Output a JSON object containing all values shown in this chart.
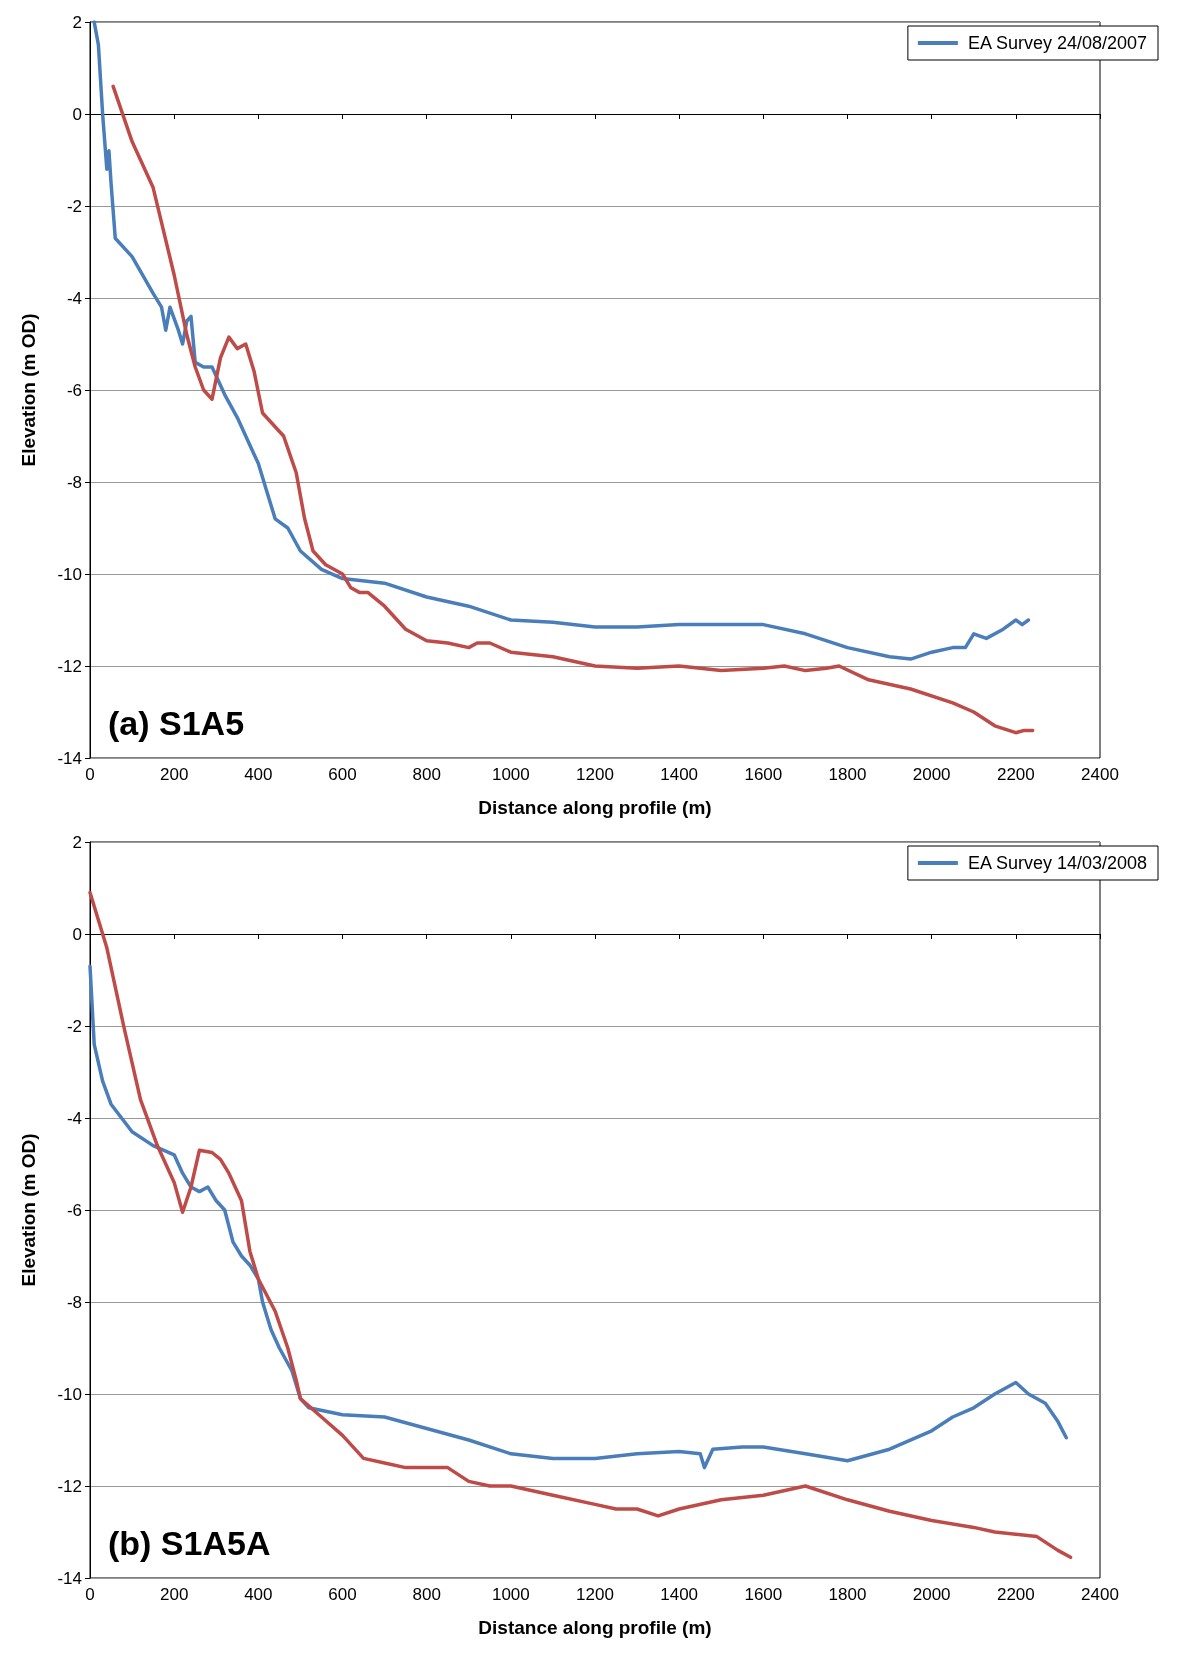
{
  "chart_data": [
    {
      "type": "line",
      "xlabel": "Distance along profile (m)",
      "ylabel": "Elevation (m OD)",
      "annotations": [
        "(a) S1A5"
      ],
      "xlim": [
        0,
        2400
      ],
      "xticks": [
        0,
        200,
        400,
        600,
        800,
        1000,
        1200,
        1400,
        1600,
        1800,
        2000,
        2200,
        2400
      ],
      "ylim": [
        -14,
        2
      ],
      "yticks": [
        -14,
        -12,
        -10,
        -8,
        -6,
        -4,
        -2,
        0,
        2
      ],
      "grid": "y",
      "legend": "top right",
      "marker": "none",
      "line_style": "solid",
      "series": [
        {
          "name": "EA Survey 24/08/2007",
          "color": "#4a7ebb",
          "x": [
            10,
            20,
            30,
            40,
            45,
            50,
            60,
            100,
            150,
            170,
            180,
            190,
            210,
            220,
            230,
            240,
            250,
            270,
            290,
            320,
            350,
            380,
            400,
            420,
            440,
            470,
            500,
            550,
            600,
            700,
            800,
            900,
            1000,
            1100,
            1200,
            1300,
            1400,
            1500,
            1600,
            1700,
            1800,
            1900,
            1950,
            2000,
            2050,
            2080,
            2100,
            2130,
            2170,
            2200,
            2215,
            2230
          ],
          "values": [
            2,
            1.5,
            0,
            -1.2,
            -0.8,
            -1.5,
            -2.7,
            -3.1,
            -3.9,
            -4.2,
            -4.7,
            -4.2,
            -4.7,
            -5.0,
            -4.5,
            -4.4,
            -5.4,
            -5.5,
            -5.5,
            -6.1,
            -6.6,
            -7.2,
            -7.6,
            -8.2,
            -8.8,
            -9.0,
            -9.5,
            -9.9,
            -10.1,
            -10.2,
            -10.5,
            -10.7,
            -11.0,
            -11.05,
            -11.15,
            -11.15,
            -11.1,
            -11.1,
            -11.1,
            -11.3,
            -11.6,
            -11.8,
            -11.85,
            -11.7,
            -11.6,
            -11.6,
            -11.3,
            -11.4,
            -11.2,
            -11.0,
            -11.1,
            -11.0
          ]
        },
        {
          "color": "#be4b48",
          "x": [
            55,
            100,
            150,
            200,
            230,
            250,
            270,
            290,
            310,
            330,
            350,
            370,
            390,
            410,
            430,
            460,
            490,
            510,
            530,
            560,
            600,
            620,
            640,
            660,
            700,
            750,
            800,
            850,
            900,
            920,
            950,
            1000,
            1100,
            1200,
            1300,
            1400,
            1500,
            1600,
            1650,
            1700,
            1750,
            1780,
            1850,
            1950,
            2050,
            2100,
            2150,
            2200,
            2220,
            2240
          ],
          "values": [
            0.6,
            -0.6,
            -1.6,
            -3.5,
            -4.8,
            -5.5,
            -6.0,
            -6.2,
            -5.3,
            -4.85,
            -5.1,
            -5.0,
            -5.6,
            -6.5,
            -6.7,
            -7.0,
            -7.8,
            -8.8,
            -9.5,
            -9.8,
            -10.0,
            -10.3,
            -10.4,
            -10.4,
            -10.7,
            -11.2,
            -11.45,
            -11.5,
            -11.6,
            -11.5,
            -11.5,
            -11.7,
            -11.8,
            -12.0,
            -12.05,
            -12.0,
            -12.1,
            -12.05,
            -12.0,
            -12.1,
            -12.05,
            -12.0,
            -12.3,
            -12.5,
            -12.8,
            -13.0,
            -13.3,
            -13.45,
            -13.4,
            -13.4
          ]
        }
      ]
    },
    {
      "type": "line",
      "xlabel": "Distance along profile (m)",
      "ylabel": "Elevation (m OD)",
      "annotations": [
        "(b) S1A5A"
      ],
      "xlim": [
        0,
        2400
      ],
      "xticks": [
        0,
        200,
        400,
        600,
        800,
        1000,
        1200,
        1400,
        1600,
        1800,
        2000,
        2200,
        2400
      ],
      "ylim": [
        -14,
        2
      ],
      "yticks": [
        -14,
        -12,
        -10,
        -8,
        -6,
        -4,
        -2,
        0,
        2
      ],
      "grid": "y",
      "legend": "top right",
      "marker": "none",
      "line_style": "solid",
      "series": [
        {
          "name": "EA Survey 14/03/2008",
          "color": "#4a7ebb",
          "x": [
            0,
            10,
            30,
            50,
            100,
            150,
            200,
            220,
            240,
            260,
            280,
            300,
            320,
            340,
            360,
            380,
            400,
            410,
            430,
            450,
            480,
            500,
            520,
            600,
            700,
            800,
            900,
            1000,
            1100,
            1200,
            1300,
            1400,
            1450,
            1460,
            1480,
            1550,
            1600,
            1700,
            1800,
            1900,
            2000,
            2050,
            2100,
            2150,
            2200,
            2230,
            2270,
            2300,
            2320
          ],
          "values": [
            -0.7,
            -2.4,
            -3.2,
            -3.7,
            -4.3,
            -4.6,
            -4.8,
            -5.2,
            -5.5,
            -5.6,
            -5.5,
            -5.8,
            -6.0,
            -6.7,
            -7.0,
            -7.2,
            -7.5,
            -8.0,
            -8.6,
            -9.0,
            -9.5,
            -10.1,
            -10.3,
            -10.45,
            -10.5,
            -10.75,
            -11.0,
            -11.3,
            -11.4,
            -11.4,
            -11.3,
            -11.25,
            -11.3,
            -11.6,
            -11.2,
            -11.15,
            -11.15,
            -11.3,
            -11.45,
            -11.2,
            -10.8,
            -10.5,
            -10.3,
            -10.0,
            -9.75,
            -10.0,
            -10.2,
            -10.6,
            -10.95
          ]
        },
        {
          "color": "#be4b48",
          "x": [
            0,
            40,
            80,
            120,
            160,
            200,
            220,
            240,
            260,
            290,
            310,
            330,
            360,
            380,
            400,
            440,
            470,
            490,
            500,
            550,
            600,
            650,
            700,
            750,
            800,
            850,
            900,
            950,
            1000,
            1100,
            1200,
            1250,
            1300,
            1350,
            1400,
            1500,
            1600,
            1700,
            1800,
            1900,
            2000,
            2100,
            2150,
            2250,
            2300,
            2330
          ],
          "values": [
            0.9,
            -0.3,
            -2.0,
            -3.6,
            -4.6,
            -5.4,
            -6.05,
            -5.5,
            -4.7,
            -4.75,
            -4.9,
            -5.2,
            -5.8,
            -6.9,
            -7.5,
            -8.2,
            -9.0,
            -9.7,
            -10.1,
            -10.5,
            -10.9,
            -11.4,
            -11.5,
            -11.6,
            -11.6,
            -11.6,
            -11.9,
            -12.0,
            -12.0,
            -12.2,
            -12.4,
            -12.5,
            -12.5,
            -12.65,
            -12.5,
            -12.3,
            -12.2,
            -12.0,
            -12.3,
            -12.55,
            -12.75,
            -12.9,
            -13.0,
            -13.1,
            -13.4,
            -13.55
          ]
        }
      ]
    }
  ]
}
